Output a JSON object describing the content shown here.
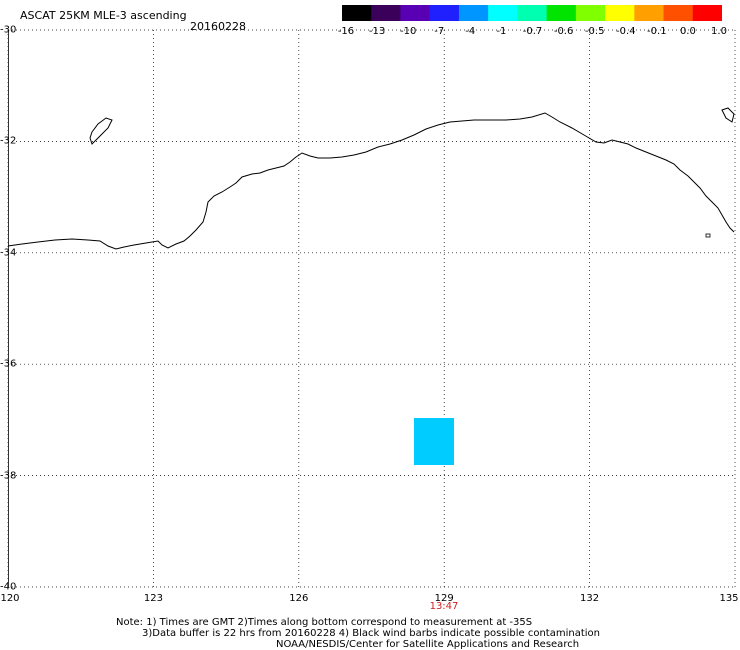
{
  "header": {
    "title": "ASCAT 25KM MLE-3 ascending",
    "date": "20160228"
  },
  "colorbar": {
    "ticks": [
      "-16",
      "-13",
      "-10",
      "-7",
      "-4",
      "-1",
      "-0.7",
      "-0.6",
      "-0.5",
      "-0.4",
      "-0.1",
      "0.0",
      "1.0"
    ],
    "colors": [
      "#000000",
      "#3a005a",
      "#5a00b4",
      "#2020ff",
      "#0096ff",
      "#00ffff",
      "#00ffb0",
      "#00e400",
      "#80ff00",
      "#ffff00",
      "#ffa000",
      "#ff5000",
      "#ff0000"
    ]
  },
  "map": {
    "lat_labels": [
      "-30",
      "-32",
      "-34",
      "-36",
      "-38",
      "-40"
    ],
    "lon_labels": [
      "120",
      "123",
      "126",
      "129",
      "132",
      "135"
    ],
    "time_label": "13:47",
    "data_cell_color": "#00ccff"
  },
  "footer": {
    "note_line1": "Note: 1) Times are GMT 2)Times along bottom correspond to measurement at -35S",
    "note_line2": "3)Data buffer is 22 hrs from 20160228 4) Black wind barbs indicate possible contamination",
    "credit": "NOAA/NESDIS/Center for Satellite Applications and Research"
  }
}
